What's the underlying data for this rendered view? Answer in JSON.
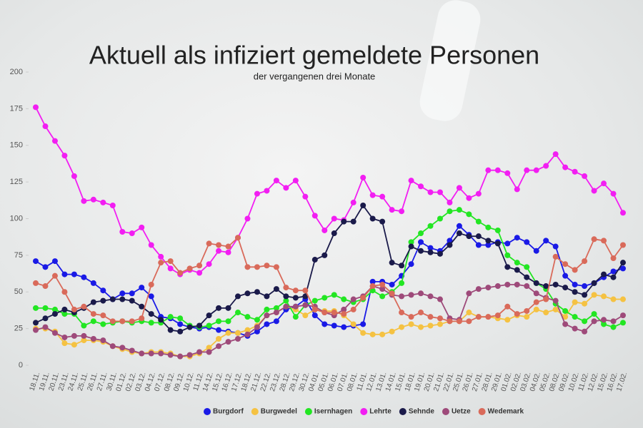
{
  "chart_data": {
    "type": "line",
    "title": "Aktuell als infiziert gemeldete Personen",
    "subtitle": "der vergangenen drei Monate",
    "categories": [
      "18.11.",
      "19.11.",
      "20.11.",
      "23.11.",
      "24.11.",
      "25.11.",
      "26.11.",
      "27.11.",
      "30.11.",
      "01.12.",
      "02.12.",
      "03.12.",
      "04.12.",
      "07.12.",
      "08.12.",
      "09.12.",
      "10.12.",
      "11.12.",
      "14.12.",
      "15.12.",
      "16.12.",
      "17.12.",
      "18.12.",
      "21.12.",
      "22.12.",
      "23.12.",
      "28.12.",
      "29.12.",
      "30.12.",
      "04.01.",
      "05.01.",
      "06.01.",
      "07.01.",
      "08.01.",
      "11.01.",
      "12.01.",
      "13.01.",
      "14.01.",
      "15.01.",
      "18.01.",
      "19.01.",
      "20.01.",
      "21.01.",
      "22.01.",
      "25.01.",
      "26.01.",
      "27.01.",
      "28.01.",
      "29.01.",
      "01.02.",
      "02.02.",
      "03.02.",
      "04.02.",
      "05.02.",
      "08.02.",
      "09.02.",
      "10.02.",
      "11.02.",
      "12.02.",
      "15.02.",
      "16.02.",
      "17.02."
    ],
    "series": [
      {
        "name": "Burgdorf",
        "color": "#1a1ae6",
        "values": [
          71,
          67,
          71,
          62,
          62,
          60,
          56,
          51,
          45,
          49,
          49,
          53,
          47,
          33,
          32,
          28,
          26,
          25,
          26,
          24,
          23,
          22,
          20,
          23,
          28,
          30,
          38,
          40,
          45,
          34,
          28,
          27,
          26,
          27,
          28,
          57,
          57,
          55,
          61,
          69,
          84,
          80,
          78,
          85,
          95,
          89,
          82,
          82,
          84,
          83,
          87,
          84,
          78,
          85,
          81,
          61,
          55,
          54,
          56,
          60,
          64,
          66
        ]
      },
      {
        "name": "Burgwedel",
        "color": "#f5c242",
        "values": [
          25,
          25,
          23,
          15,
          14,
          17,
          17,
          16,
          13,
          11,
          9,
          8,
          9,
          9,
          8,
          6,
          6,
          8,
          12,
          18,
          22,
          22,
          24,
          27,
          34,
          36,
          40,
          38,
          34,
          38,
          37,
          37,
          34,
          28,
          22,
          21,
          21,
          23,
          26,
          28,
          26,
          27,
          28,
          30,
          30,
          36,
          33,
          33,
          32,
          31,
          34,
          33,
          38,
          36,
          38,
          33,
          43,
          42,
          48,
          47,
          45,
          45
        ]
      },
      {
        "name": "Isernhagen",
        "color": "#22e622",
        "values": [
          39,
          39,
          38,
          35,
          35,
          27,
          30,
          28,
          29,
          30,
          29,
          30,
          29,
          29,
          33,
          32,
          27,
          26,
          27,
          30,
          30,
          36,
          33,
          31,
          38,
          39,
          44,
          33,
          41,
          44,
          46,
          48,
          45,
          43,
          45,
          51,
          47,
          50,
          56,
          84,
          90,
          95,
          100,
          105,
          106,
          103,
          98,
          94,
          92,
          75,
          70,
          67,
          56,
          52,
          42,
          37,
          33,
          30,
          35,
          28,
          26,
          29
        ]
      },
      {
        "name": "Lehrte",
        "color": "#f21ef2",
        "values": [
          176,
          163,
          153,
          143,
          129,
          112,
          113,
          111,
          109,
          91,
          90,
          94,
          82,
          74,
          66,
          62,
          65,
          63,
          69,
          78,
          77,
          87,
          100,
          117,
          119,
          126,
          121,
          126,
          115,
          102,
          92,
          100,
          99,
          111,
          128,
          116,
          115,
          106,
          105,
          126,
          122,
          118,
          118,
          111,
          121,
          114,
          117,
          133,
          133,
          131,
          120,
          133,
          133,
          136,
          144,
          135,
          132,
          129,
          119,
          124,
          117,
          104
        ]
      },
      {
        "name": "Sehnde",
        "color": "#1a1a4a",
        "values": [
          29,
          32,
          35,
          38,
          36,
          39,
          43,
          44,
          45,
          45,
          44,
          40,
          35,
          31,
          24,
          23,
          26,
          27,
          34,
          39,
          39,
          47,
          49,
          50,
          47,
          52,
          47,
          46,
          47,
          72,
          75,
          90,
          98,
          98,
          109,
          100,
          98,
          70,
          68,
          81,
          78,
          77,
          76,
          82,
          90,
          88,
          88,
          85,
          83,
          67,
          65,
          60,
          56,
          54,
          55,
          53,
          50,
          48,
          56,
          62,
          60,
          70
        ]
      },
      {
        "name": "Uetze",
        "color": "#9e4a7a",
        "values": [
          24,
          26,
          22,
          19,
          20,
          20,
          18,
          17,
          13,
          12,
          10,
          8,
          8,
          8,
          7,
          6,
          7,
          9,
          9,
          13,
          16,
          18,
          21,
          26,
          34,
          36,
          40,
          40,
          41,
          40,
          36,
          34,
          38,
          45,
          47,
          54,
          52,
          48,
          47,
          48,
          49,
          47,
          45,
          32,
          31,
          49,
          52,
          53,
          54,
          55,
          55,
          54,
          49,
          46,
          44,
          28,
          25,
          23,
          30,
          31,
          30,
          34
        ]
      },
      {
        "name": "Wedemark",
        "color": "#d96a5a",
        "values": [
          56,
          54,
          61,
          50,
          38,
          40,
          35,
          34,
          30,
          30,
          30,
          32,
          55,
          70,
          71,
          63,
          66,
          68,
          83,
          82,
          81,
          87,
          67,
          67,
          68,
          67,
          53,
          51,
          51,
          38,
          36,
          36,
          35,
          38,
          46,
          54,
          55,
          49,
          36,
          33,
          36,
          33,
          32,
          30,
          30,
          30,
          33,
          33,
          34,
          40,
          35,
          37,
          43,
          45,
          74,
          69,
          65,
          71,
          86,
          85,
          73,
          82
        ]
      }
    ],
    "ylim": [
      0,
      200
    ],
    "yticks": [
      0,
      25,
      50,
      75,
      100,
      125,
      150,
      175,
      200
    ],
    "grid": false,
    "legend": "bottom"
  }
}
